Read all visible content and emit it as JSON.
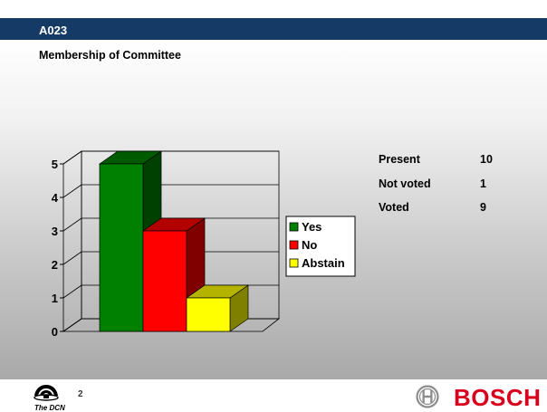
{
  "slide": {
    "code": "A023",
    "title": "Membership of Committee",
    "page_number": "2"
  },
  "stats": [
    {
      "label": "Present",
      "value": "10"
    },
    {
      "label": "Not voted",
      "value": "1"
    },
    {
      "label": "Voted",
      "value": "9"
    }
  ],
  "footer": {
    "dcn_label": "The DCN",
    "brand": "BOSCH"
  },
  "chart_data": {
    "type": "bar",
    "categories": [
      "Yes",
      "No",
      "Abstain"
    ],
    "values": [
      5,
      3,
      1
    ],
    "colors": [
      "#008000",
      "#ff0000",
      "#ffff00"
    ],
    "yticks": [
      "0",
      "1",
      "2",
      "3",
      "4",
      "5"
    ],
    "ylim": [
      0,
      5
    ],
    "grid": true,
    "legend": "right",
    "style": "3d-column"
  }
}
